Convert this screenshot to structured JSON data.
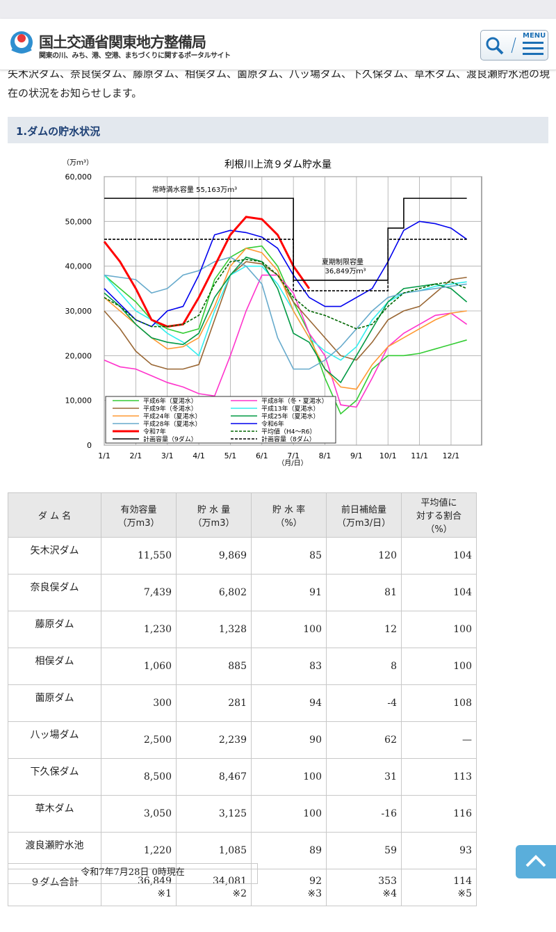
{
  "header": {
    "title": "国土交通省関東地方整備局",
    "subtitle": "関東の川、みち、港、空港、まちづくりに関するポータルサイト",
    "menu": "MENU"
  },
  "intro": "矢木沢ダム、奈良俣ダム、藤原ダム、相俣ダム、薗原ダム、八ッ場ダム、下久保ダム、草木ダム、渡良瀬貯水池の現在の状況をお知らせします。",
  "section_title": "1.ダムの貯水状況",
  "chart_data": {
    "type": "line",
    "title": "利根川上流９ダム貯水量",
    "y_label": "（万ｍ³）",
    "x_label": "（月/日）",
    "annotations": [
      "常時満水容量 55,163万ｍ³",
      "夏期制限容量",
      "36,849万ｍ³"
    ],
    "categories": [
      "1/1",
      null,
      "2/1",
      null,
      "3/1",
      null,
      "4/1",
      null,
      "5/1",
      null,
      "6/1",
      null,
      "7/1",
      null,
      "8/1",
      null,
      "9/1",
      null,
      "10/1",
      null,
      "11/1",
      null,
      "12/1",
      null
    ],
    "ylim": [
      0,
      60000
    ],
    "yticks": [
      0,
      {
        "value": 10000,
        "label": "10,000"
      },
      {
        "value": 20000,
        "label": "20,000"
      },
      {
        "value": 30000,
        "label": "30,000"
      },
      {
        "value": 40000,
        "label": "40,000"
      },
      {
        "value": 50000,
        "label": "50,000"
      },
      {
        "value": 60000,
        "label": "60,000"
      }
    ],
    "grid": true,
    "legend": "lower left",
    "series": [
      {
        "name": "平成6年（夏渇水）",
        "color": "#33cc33",
        "values": [
          38000,
          35000,
          32000,
          28000,
          26000,
          25000,
          26000,
          37000,
          42000,
          44000,
          44500,
          40000,
          32000,
          25000,
          15000,
          7000,
          10000,
          17000,
          20000,
          20000,
          20500,
          21500,
          22500,
          23500
        ]
      },
      {
        "name": "平成8年（冬・夏渇水）",
        "color": "#ff33cc",
        "values": [
          19000,
          17500,
          17000,
          15500,
          14000,
          13000,
          11500,
          11000,
          20000,
          30000,
          38000,
          38000,
          34000,
          25000,
          20000,
          9000,
          8500,
          15000,
          22000,
          25000,
          27000,
          29000,
          29500,
          27000
        ]
      },
      {
        "name": "平成9年（冬渇水）",
        "color": "#996633",
        "values": [
          30000,
          26000,
          21000,
          18000,
          17000,
          17000,
          18000,
          28000,
          38000,
          41000,
          40500,
          38000,
          32000,
          28000,
          24000,
          20000,
          19000,
          23000,
          28000,
          30000,
          31000,
          34000,
          37000,
          37500
        ]
      },
      {
        "name": "平成13年（夏渇水）",
        "color": "#33eeee",
        "values": [
          38000,
          34000,
          30000,
          28000,
          25000,
          23000,
          20000,
          30000,
          38000,
          40000,
          40000,
          36000,
          30000,
          24000,
          21000,
          19000,
          22000,
          28000,
          32000,
          34000,
          34500,
          35500,
          36000,
          36500
        ]
      },
      {
        "name": "平成24年（夏渇水）",
        "color": "#ff9933",
        "values": [
          33000,
          30000,
          27000,
          24000,
          21500,
          22000,
          24000,
          31000,
          40000,
          44000,
          43000,
          39000,
          30000,
          24000,
          17000,
          13000,
          12500,
          18000,
          22000,
          24000,
          26000,
          28000,
          29500,
          30000
        ]
      },
      {
        "name": "平成25年（夏渇水）",
        "color": "#009944",
        "values": [
          34000,
          31000,
          27000,
          24000,
          23000,
          22500,
          25000,
          33000,
          38000,
          42000,
          41000,
          35000,
          25000,
          23000,
          17000,
          14000,
          20000,
          26000,
          32000,
          35000,
          35500,
          36000,
          35000,
          32000
        ]
      },
      {
        "name": "平成28年（夏渇水）",
        "color": "#66aacc",
        "values": [
          38000,
          37500,
          37000,
          34000,
          35000,
          38000,
          39000,
          41000,
          42000,
          40000,
          36000,
          24000,
          17000,
          17000,
          19000,
          22000,
          26000,
          30000,
          33000,
          34000,
          34500,
          35000,
          35500,
          36000
        ]
      },
      {
        "name": "令和6年",
        "color": "#0000ee",
        "values": [
          35000,
          31500,
          28000,
          26500,
          30000,
          31000,
          38000,
          47000,
          48000,
          47500,
          46500,
          44000,
          38000,
          33000,
          31000,
          31000,
          33000,
          35000,
          41000,
          48000,
          50000,
          49500,
          48500,
          46000
        ]
      },
      {
        "name": "令和7年",
        "color": "#ff0000",
        "width": 3,
        "values": [
          45500,
          41000,
          35000,
          28000,
          26500,
          27000,
          33000,
          40000,
          47000,
          51000,
          50500,
          47000,
          40000,
          35000,
          null,
          null,
          null,
          null,
          null,
          null,
          null,
          null,
          null,
          null
        ]
      },
      {
        "name": "平均値（H4～R6）",
        "color": "#006600",
        "dash": true,
        "values": [
          33000,
          31000,
          28000,
          26500,
          26500,
          27000,
          29000,
          36000,
          41000,
          41500,
          41000,
          38000,
          33000,
          30000,
          29000,
          27500,
          26000,
          27000,
          31000,
          34000,
          35000,
          36000,
          36500,
          35000
        ]
      },
      {
        "name": "計画容量（9ダム）",
        "color": "#000000",
        "step": true,
        "values": [
          55163,
          55163,
          55163,
          55163,
          55163,
          55163,
          55163,
          55163,
          55163,
          55163,
          55163,
          55163,
          36849,
          36849,
          36849,
          36849,
          36849,
          36849,
          48500,
          55163,
          55163,
          55163,
          55163,
          55163
        ]
      },
      {
        "name": "計画容量（8ダム）",
        "color": "#000000",
        "dash": true,
        "step": true,
        "values": [
          46000,
          46000,
          46000,
          46000,
          46000,
          46000,
          46000,
          46000,
          46000,
          46000,
          46000,
          46000,
          34500,
          34500,
          34500,
          34500,
          34500,
          34500,
          46000,
          46000,
          46000,
          46000,
          46000,
          46000
        ]
      }
    ]
  },
  "table": {
    "header": [
      [
        "ダ ム 名"
      ],
      [
        "有効容量",
        "（万m3）"
      ],
      [
        "貯 水 量",
        "（万m3）"
      ],
      [
        "貯 水 率",
        "（%）"
      ],
      [
        "前日補給量",
        "（万m3/日）"
      ],
      [
        "平均値に",
        "対する割合",
        "（%）"
      ]
    ],
    "rows": [
      [
        "矢木沢ダム",
        "11,550",
        "9,869",
        "85",
        "120",
        "104"
      ],
      [
        "奈良俣ダム",
        "7,439",
        "6,802",
        "91",
        "81",
        "104"
      ],
      [
        "藤原ダム",
        "1,230",
        "1,328",
        "100",
        "12",
        "100"
      ],
      [
        "相俣ダム",
        "1,060",
        "885",
        "83",
        "8",
        "100"
      ],
      [
        "薗原ダム",
        "300",
        "281",
        "94",
        "-4",
        "108"
      ],
      [
        "八ッ場ダム",
        "2,500",
        "2,239",
        "90",
        "62",
        "—"
      ],
      [
        "下久保ダム",
        "8,500",
        "8,467",
        "100",
        "31",
        "113"
      ],
      [
        "草木ダム",
        "3,050",
        "3,125",
        "100",
        "-16",
        "116"
      ],
      [
        "渡良瀬貯水池",
        "1,220",
        "1,085",
        "89",
        "59",
        "93"
      ]
    ],
    "total": {
      "name": "９ダム合計",
      "cells": [
        [
          "36,849",
          "※1"
        ],
        [
          "34,081",
          "※2"
        ],
        [
          "92",
          "※3"
        ],
        [
          "353",
          "※4"
        ],
        [
          "114",
          "※5"
        ]
      ]
    }
  },
  "timestamp": "令和7年7月28日 0時現在"
}
